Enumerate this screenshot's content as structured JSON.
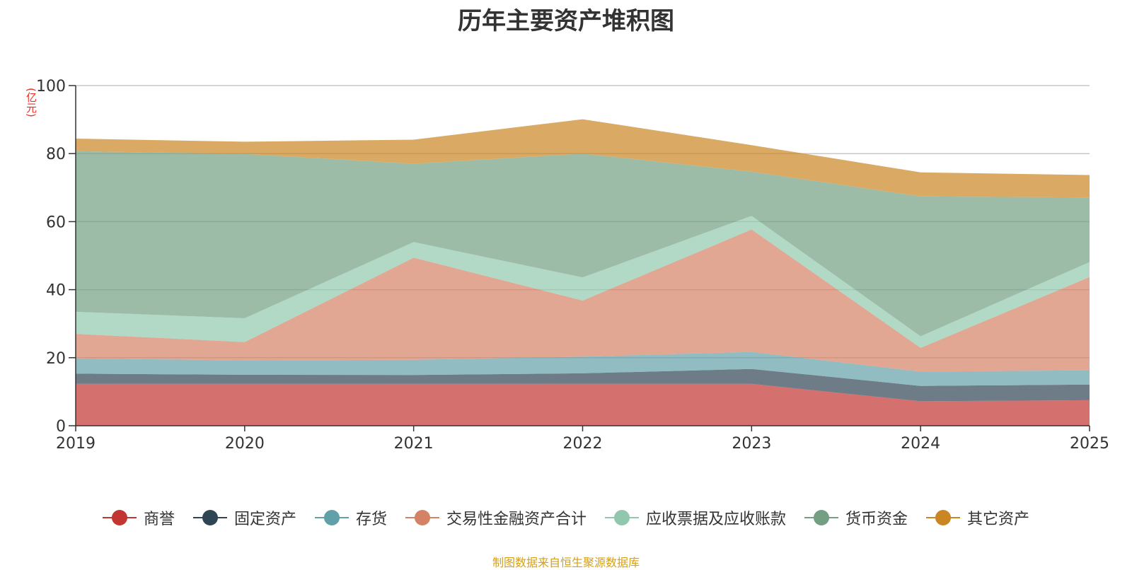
{
  "chart_data": {
    "type": "area",
    "stacked": true,
    "title": "历年主要资产堆积图",
    "ylabel": "(亿元)",
    "xlabel": "",
    "categories": [
      "2019",
      "2020",
      "2021",
      "2022",
      "2023",
      "2024",
      "2025"
    ],
    "ylim": [
      0,
      100
    ],
    "yticks": [
      0,
      20,
      40,
      60,
      80,
      100
    ],
    "grid": true,
    "legend_position": "bottom",
    "series": [
      {
        "name": "商誉",
        "color": "#c23531",
        "values": [
          12.3,
          12.3,
          12.3,
          12.3,
          12.3,
          7.2,
          7.5
        ]
      },
      {
        "name": "固定资产",
        "color": "#2f4554",
        "values": [
          3.0,
          2.7,
          2.6,
          3.1,
          4.4,
          4.5,
          4.6
        ]
      },
      {
        "name": "存货",
        "color": "#61a0a8",
        "values": [
          4.5,
          4.2,
          4.5,
          4.9,
          5.0,
          4.2,
          4.2
        ]
      },
      {
        "name": "交易性金融资产合计",
        "color": "#d48265",
        "values": [
          7.2,
          5.4,
          30.0,
          16.5,
          36.0,
          7.0,
          27.4
        ]
      },
      {
        "name": "应收票据及应收账款",
        "color": "#91c7ae",
        "values": [
          6.5,
          7.0,
          4.6,
          6.8,
          4.0,
          3.4,
          4.4
        ]
      },
      {
        "name": "货币资金",
        "color": "#749f83",
        "values": [
          47.2,
          48.3,
          23.0,
          36.4,
          13.0,
          41.1,
          19.0
        ]
      },
      {
        "name": "其它资产",
        "color": "#ca8622",
        "values": [
          3.7,
          3.6,
          7.1,
          10.1,
          7.8,
          7.1,
          6.6
        ]
      }
    ]
  },
  "source": "制图数据来自恒生聚源数据库"
}
